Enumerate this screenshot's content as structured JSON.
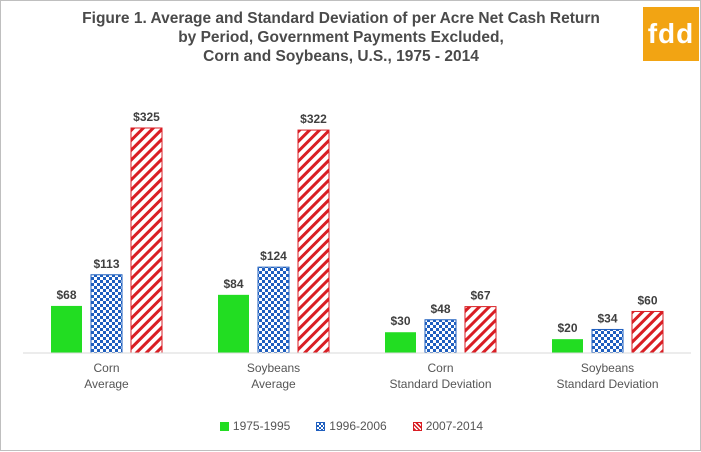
{
  "title_lines": [
    "Figure 1. Average and Standard Deviation of per Acre Net Cash Return",
    "by Period, Government Payments Excluded,",
    "Corn and Soybeans, U.S., 1975 - 2014"
  ],
  "logo_text": "fdd",
  "colors": {
    "green": "#22dd22",
    "blue": "#1f5fbf",
    "red": "#d91e24",
    "axis": "#d9d9d9",
    "logo": "#f2a413"
  },
  "chart_data": {
    "type": "bar",
    "categories": [
      [
        "Corn",
        "Average"
      ],
      [
        "Soybeans",
        "Average"
      ],
      [
        "Corn",
        "Standard Deviation"
      ],
      [
        "Soybeans",
        "Standard Deviation"
      ]
    ],
    "series": [
      {
        "name": "1975-1995",
        "values": [
          68,
          84,
          30,
          20
        ],
        "labels": [
          "$68",
          "$84",
          "$30",
          "$20"
        ],
        "pattern": "solid",
        "color": "#22dd22"
      },
      {
        "name": "1996-2006",
        "values": [
          113,
          124,
          48,
          34
        ],
        "labels": [
          "$113",
          "$124",
          "$48",
          "$34"
        ],
        "pattern": "checker",
        "color": "#1f5fbf"
      },
      {
        "name": "2007-2014",
        "values": [
          325,
          322,
          67,
          60
        ],
        "labels": [
          "$325",
          "$322",
          "$67",
          "$60"
        ],
        "pattern": "diagonal",
        "color": "#d91e24"
      }
    ],
    "ylim": [
      0,
      330
    ],
    "grid": false,
    "legend_position": "bottom"
  }
}
